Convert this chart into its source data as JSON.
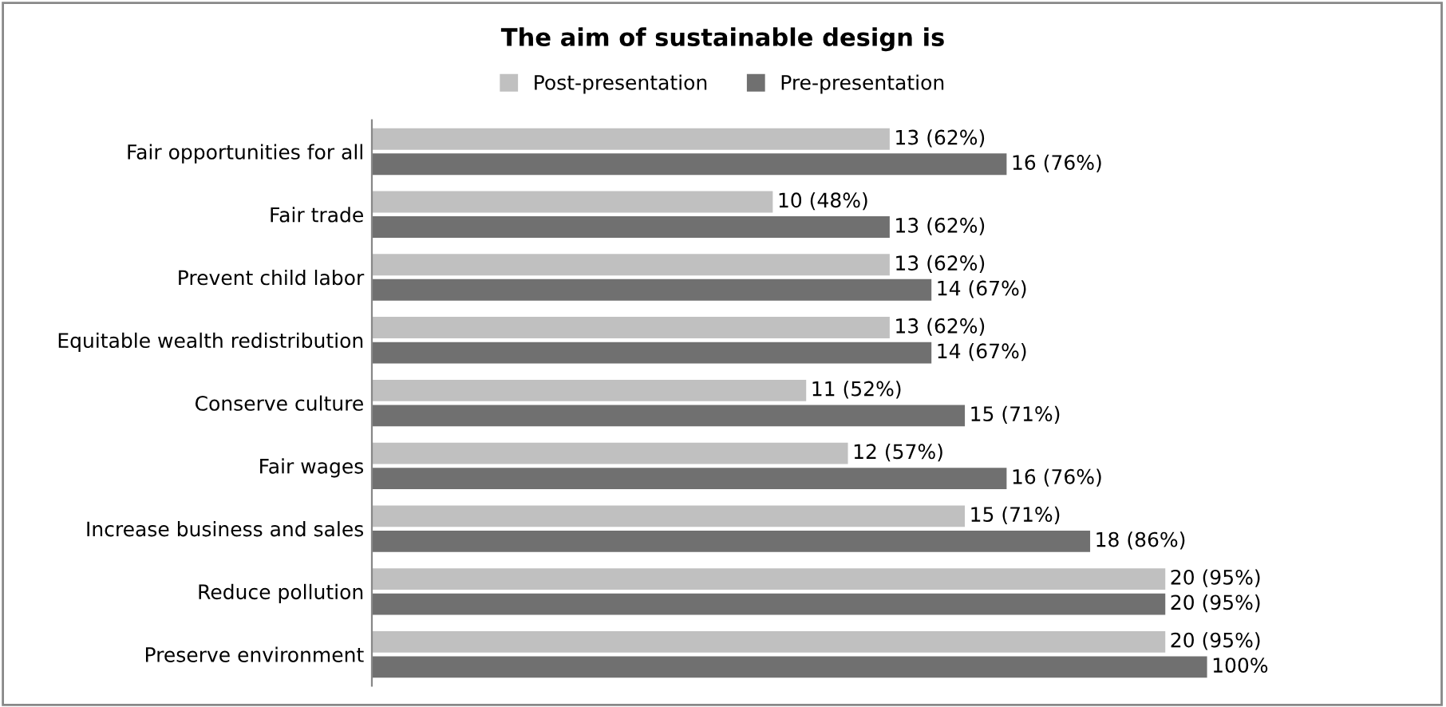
{
  "chart_data": {
    "type": "bar",
    "orientation": "horizontal",
    "title": "The aim of sustainable design is",
    "categories": [
      "Fair opportunities for all",
      "Fair trade",
      "Prevent child labor",
      "Equitable wealth redistribution",
      "Conserve culture",
      "Fair wages",
      "Increase business and sales",
      "Reduce pollution",
      "Preserve environment"
    ],
    "series": [
      {
        "name": "Post-presentation",
        "color": "#c0c0c0",
        "values": [
          62,
          48,
          62,
          62,
          52,
          57,
          71,
          95,
          95
        ],
        "value_labels": [
          "13 (62%)",
          "10 (48%)",
          "13 (62%)",
          "13 (62%)",
          "11 (52%)",
          "12 (57%)",
          "15 (71%)",
          "20 (95%)",
          "20 (95%)"
        ]
      },
      {
        "name": "Pre-presentation",
        "color": "#707070",
        "values": [
          76,
          62,
          67,
          67,
          71,
          76,
          86,
          95,
          100
        ],
        "value_labels": [
          "16 (76%)",
          "13 (62%)",
          "14 (67%)",
          "14 (67%)",
          "15 (71%)",
          "16 (76%)",
          "18 (86%)",
          "20 (95%)",
          "100%"
        ]
      }
    ],
    "legend": "top",
    "grid": false,
    "tick_labels": "y"
  }
}
